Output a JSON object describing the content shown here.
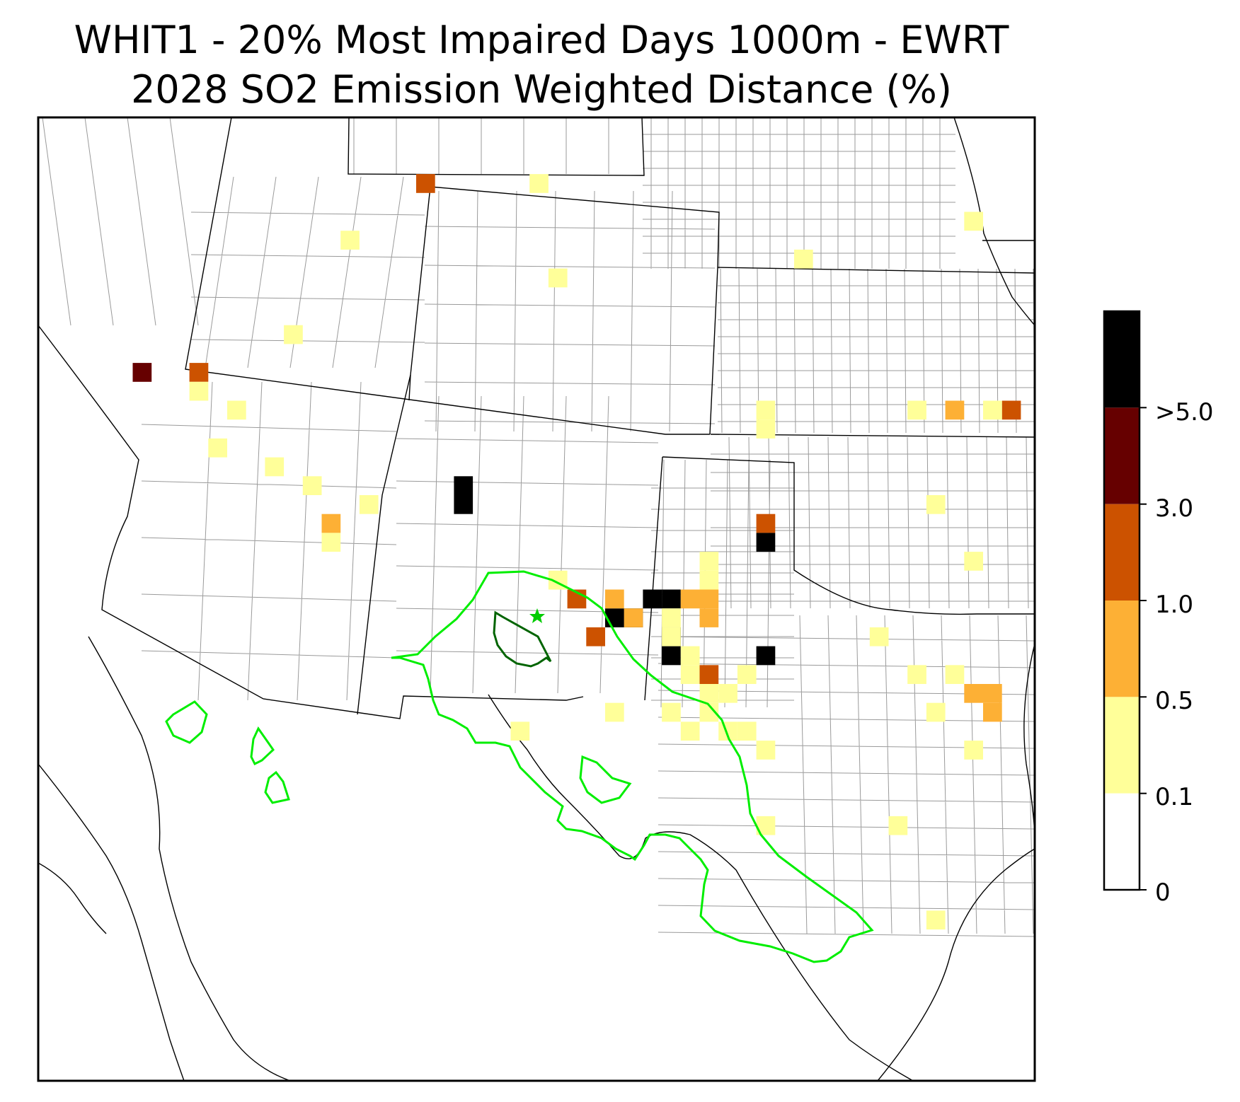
{
  "title": {
    "line1": "WHIT1 - 20% Most Impaired Days 1000m - EWRT",
    "line2": "2028 SO2 Emission Weighted Distance (%)"
  },
  "colorbar": {
    "colors": [
      "#ffffff",
      "#ffff99",
      "#fdb035",
      "#cc5200",
      "#660000",
      "#000000"
    ],
    "tick_labels": [
      "0",
      "0.1",
      "0.5",
      "1.0",
      "3.0",
      ">5.0"
    ]
  },
  "contours": {
    "outer_color": "#00ee00",
    "inner_color": "#006400",
    "star_color": "#00cc00"
  },
  "grid_cells": [
    {
      "col": 20,
      "row": 3,
      "level": 3
    },
    {
      "col": 26,
      "row": 3,
      "level": 1
    },
    {
      "col": 16,
      "row": 6,
      "level": 1
    },
    {
      "col": 27,
      "row": 8,
      "level": 1
    },
    {
      "col": 13,
      "row": 11,
      "level": 1
    },
    {
      "col": 5,
      "row": 13,
      "level": 4
    },
    {
      "col": 8,
      "row": 13,
      "level": 3
    },
    {
      "col": 8,
      "row": 14,
      "level": 1
    }
  ]
}
